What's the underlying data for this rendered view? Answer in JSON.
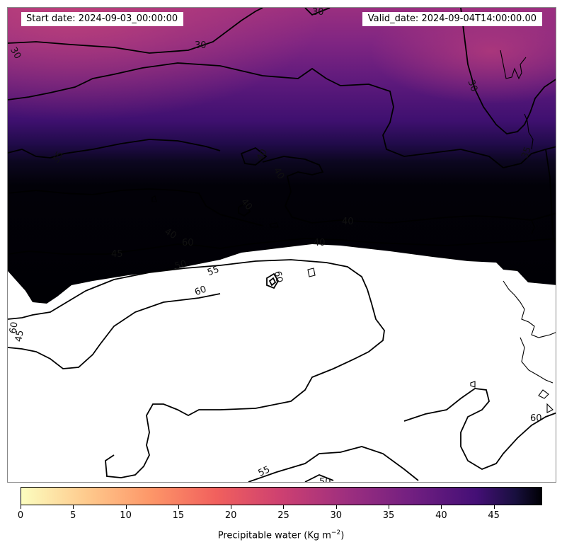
{
  "header": {
    "start_date": "Start date: 2024-09-03_00:00:00",
    "valid_date": "Valid_date: 2024-09-04T14:00:00.00"
  },
  "contour_labels": [
    "30",
    "30",
    "30",
    "30",
    "35",
    "35",
    "40",
    "40",
    "40",
    "40",
    "40",
    "40",
    "45",
    "45",
    "50",
    "50",
    "55",
    "55",
    "60",
    "60",
    "60",
    "60",
    "60"
  ],
  "colorbar": {
    "label_prefix": "Precipitable water (Kg m",
    "label_sup": "−2",
    "label_suffix": ")",
    "colormap": "magma_r",
    "range": [
      0,
      50
    ],
    "ticks": [
      "0",
      "5",
      "10",
      "15",
      "20",
      "25",
      "30",
      "35",
      "40",
      "45"
    ]
  }
}
